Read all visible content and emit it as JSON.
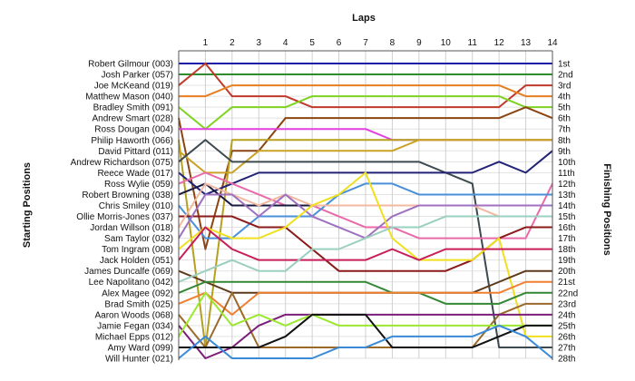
{
  "chart_data": {
    "type": "line",
    "title": "Laps",
    "ylabel_left": "Starting Positions",
    "ylabel_right": "Finishing Positions",
    "x": [
      0,
      1,
      2,
      3,
      4,
      5,
      6,
      7,
      8,
      9,
      10,
      11,
      12,
      13,
      14
    ],
    "x_tick_labels": [
      "1",
      "2",
      "3",
      "4",
      "5",
      "6",
      "7",
      "8",
      "9",
      "10",
      "11",
      "12",
      "13",
      "14"
    ],
    "ylim": [
      1,
      28
    ],
    "y_inverted": true,
    "grid": true,
    "finishing_labels": [
      "1st",
      "2nd",
      "3rd",
      "4th",
      "5th",
      "6th",
      "7th",
      "8th",
      "9th",
      "10th",
      "11th",
      "12th",
      "13th",
      "14th",
      "15th",
      "16th",
      "17th",
      "18th",
      "19th",
      "20th",
      "21st",
      "22nd",
      "23rd",
      "24th",
      "25th",
      "26th",
      "27th",
      "28th"
    ],
    "series": [
      {
        "name": "Robert Gilmour (003)",
        "color": "#1a1aa6",
        "positions": [
          1,
          1,
          1,
          1,
          1,
          1,
          1,
          1,
          1,
          1,
          1,
          1,
          1,
          1,
          1
        ]
      },
      {
        "name": "Josh Parker (057)",
        "color": "#2e8b2e",
        "positions": [
          2,
          2,
          2,
          2,
          2,
          2,
          2,
          2,
          2,
          2,
          2,
          2,
          2,
          2,
          2
        ]
      },
      {
        "name": "Joe McKeand (019)",
        "color": "#c0392b",
        "positions": [
          3,
          1,
          4,
          4,
          4,
          5,
          5,
          5,
          5,
          5,
          5,
          5,
          5,
          3,
          3
        ]
      },
      {
        "name": "Matthew Mason (040)",
        "color": "#e67e22",
        "positions": [
          4,
          4,
          3,
          3,
          3,
          3,
          3,
          3,
          3,
          3,
          3,
          3,
          3,
          4,
          4
        ]
      },
      {
        "name": "Bradley Smith (091)",
        "color": "#7ed321",
        "positions": [
          5,
          7,
          5,
          5,
          5,
          4,
          4,
          4,
          4,
          4,
          4,
          4,
          4,
          5,
          5
        ]
      },
      {
        "name": "Andrew Smart (028)",
        "color": "#8b4513",
        "positions": [
          6,
          18,
          9,
          9,
          6,
          6,
          6,
          6,
          6,
          6,
          6,
          6,
          6,
          5,
          6
        ]
      },
      {
        "name": "Ross Dougan (004)",
        "color": "#e040e0",
        "positions": [
          7,
          7,
          7,
          7,
          7,
          7,
          7,
          7,
          8,
          8,
          8,
          8,
          8,
          8,
          8
        ]
      },
      {
        "name": "Philip Haworth (066)",
        "color": "#b5a020",
        "positions": [
          8,
          27,
          8,
          8,
          8,
          8,
          8,
          8,
          8,
          8,
          8,
          8,
          8,
          8,
          8
        ]
      },
      {
        "name": "David Pittard (011)",
        "color": "#c9a227",
        "positions": [
          9,
          11,
          11,
          9,
          9,
          9,
          9,
          9,
          9,
          8,
          8,
          8,
          8,
          8,
          8
        ]
      },
      {
        "name": "Andrew Richardson (075)",
        "color": "#3c4a50",
        "positions": [
          10,
          8,
          10,
          10,
          10,
          10,
          10,
          10,
          10,
          10,
          11,
          12,
          27,
          27,
          27
        ]
      },
      {
        "name": "Reece Wade (017)",
        "color": "#222277",
        "positions": [
          11,
          13,
          12,
          11,
          11,
          11,
          11,
          11,
          11,
          11,
          11,
          11,
          10,
          11,
          9
        ]
      },
      {
        "name": "Ross Wylie (059)",
        "color": "#e86aa8",
        "positions": [
          12,
          11,
          12,
          13,
          14,
          14,
          15,
          16,
          16,
          17,
          17,
          17,
          17,
          17,
          12
        ]
      },
      {
        "name": "Robert Browning (038)",
        "color": "#1a1a40",
        "positions": [
          13,
          12,
          14,
          14,
          14,
          14,
          14,
          14,
          14,
          14,
          14,
          14,
          14,
          14,
          14
        ]
      },
      {
        "name": "Chris Smiley (010)",
        "color": "#4a90d9",
        "positions": [
          14,
          17,
          17,
          15,
          15,
          15,
          13,
          12,
          12,
          13,
          13,
          13,
          13,
          13,
          13
        ]
      },
      {
        "name": "Ollie Morris-Jones (037)",
        "color": "#8b1a1a",
        "positions": [
          15,
          15,
          15,
          16,
          16,
          18,
          20,
          20,
          20,
          20,
          20,
          19,
          17,
          16,
          16
        ]
      },
      {
        "name": "Jordan Willson (018)",
        "color": "#f2b8a0",
        "positions": [
          16,
          12,
          13,
          14,
          13,
          14,
          14,
          14,
          14,
          14,
          14,
          14,
          15,
          15,
          15
        ]
      },
      {
        "name": "Sam Taylor (032)",
        "color": "#a070c0",
        "positions": [
          17,
          13,
          13,
          15,
          13,
          15,
          16,
          17,
          15,
          14,
          14,
          14,
          14,
          14,
          14
        ]
      },
      {
        "name": "Tom Ingram (008)",
        "color": "#f0e020",
        "positions": [
          18,
          16,
          17,
          17,
          16,
          14,
          13,
          11,
          17,
          19,
          19,
          19,
          17,
          26,
          26
        ]
      },
      {
        "name": "Jack Holden (051)",
        "color": "#c81e5a",
        "positions": [
          19,
          16,
          18,
          19,
          19,
          19,
          19,
          19,
          18,
          19,
          18,
          18,
          18,
          18,
          18
        ]
      },
      {
        "name": "James Duncalfe (069)",
        "color": "#5d3a1a",
        "positions": [
          20,
          21,
          22,
          22,
          22,
          22,
          22,
          22,
          22,
          22,
          22,
          22,
          21,
          20,
          20
        ]
      },
      {
        "name": "Lee Napolitano (042)",
        "color": "#9bd0c0",
        "positions": [
          21,
          20,
          19,
          20,
          20,
          18,
          18,
          17,
          16,
          16,
          15,
          15,
          15,
          15,
          15
        ]
      },
      {
        "name": "Alex Magee (092)",
        "color": "#338833",
        "positions": [
          22,
          21,
          21,
          21,
          21,
          21,
          21,
          21,
          22,
          22,
          23,
          23,
          23,
          22,
          22
        ]
      },
      {
        "name": "Brad Smith (025)",
        "color": "#f08030",
        "positions": [
          23,
          22,
          24,
          22,
          22,
          22,
          22,
          22,
          22,
          22,
          22,
          22,
          22,
          21,
          21
        ]
      },
      {
        "name": "Aaron Woods (068)",
        "color": "#9b6a2a",
        "positions": [
          24,
          27,
          22,
          27,
          27,
          27,
          27,
          27,
          27,
          27,
          27,
          27,
          24,
          23,
          23
        ]
      },
      {
        "name": "Jamie Fegan (034)",
        "color": "#7a1e7a",
        "positions": [
          25,
          28,
          27,
          25,
          24,
          24,
          24,
          24,
          24,
          24,
          24,
          24,
          24,
          24,
          24
        ]
      },
      {
        "name": "Michael Epps (012)",
        "color": "#9be830",
        "positions": [
          26,
          22,
          25,
          24,
          25,
          24,
          25,
          25,
          25,
          25,
          25,
          25,
          25,
          25,
          25
        ]
      },
      {
        "name": "Amy Ward (099)",
        "color": "#111111",
        "positions": [
          27,
          27,
          27,
          27,
          26,
          24,
          24,
          24,
          27,
          27,
          27,
          27,
          26,
          25,
          25
        ]
      },
      {
        "name": "Will Hunter (021)",
        "color": "#3a8ad8",
        "positions": [
          28,
          26,
          28,
          28,
          28,
          28,
          27,
          27,
          26,
          26,
          26,
          26,
          25,
          26,
          28
        ]
      }
    ]
  }
}
